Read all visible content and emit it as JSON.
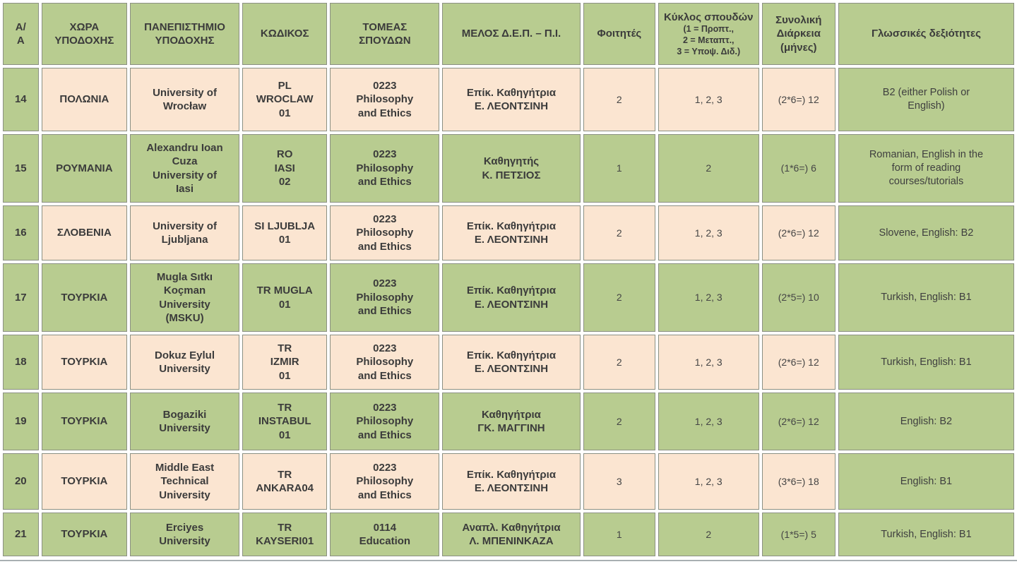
{
  "colors": {
    "green": "#b8cc90",
    "peach": "#fbe5d1",
    "border": "#8b9083"
  },
  "table": {
    "columns": [
      {
        "key": "aa",
        "label": "Α/\nΑ"
      },
      {
        "key": "country",
        "label": "ΧΩΡΑ\nΥΠΟΔΟΧΗΣ"
      },
      {
        "key": "university",
        "label": "ΠΑΝΕΠΙΣΤΗΜΙΟ\nΥΠΟΔΟΧΗΣ"
      },
      {
        "key": "code",
        "label": "ΚΩΔΙΚΟΣ"
      },
      {
        "key": "sector",
        "label": "ΤΟΜΕΑΣ\nΣΠΟΥΔΩΝ"
      },
      {
        "key": "member",
        "label": "ΜΕΛΟΣ Δ.Ε.Π. – Π.Ι."
      },
      {
        "key": "students",
        "label": "Φοιτητές"
      },
      {
        "key": "cycle",
        "label": "Κύκλος σπουδών",
        "sublabel": "(1 = Προπτ.,\n2 = Μεταπτ.,\n3 = Υποψ. Διδ.)"
      },
      {
        "key": "duration",
        "label": "Συνολική\nΔιάρκεια\n(μήνες)"
      },
      {
        "key": "languages",
        "label": "Γλωσσικές δεξιότητες"
      }
    ],
    "rows": [
      {
        "theme": "peach",
        "cells": {
          "aa": "14",
          "country": "ΠΟΛΩΝΙΑ",
          "university": "University of\nWrocław",
          "code": "PL\nWROCLAW\n01",
          "sector": "0223\nPhilosophy\nand Ethics",
          "member": "Επίκ. Καθηγήτρια\nΕ. ΛΕΟΝΤΣΙΝΗ",
          "students": "2",
          "cycle": "1, 2, 3",
          "duration": "(2*6=) 12",
          "languages": "B2 (either Polish or\nEnglish)"
        }
      },
      {
        "theme": "green",
        "cells": {
          "aa": "15",
          "country": "ΡΟΥΜΑΝΙΑ",
          "university": "Alexandru Ioan\nCuza\nUniversity of\nIasi",
          "code": "RO\nIASI\n02",
          "sector": "0223\nPhilosophy\nand Ethics",
          "member": "Καθηγητής\nΚ. ΠΕΤΣΙΟΣ",
          "students": "1",
          "cycle": "2",
          "duration": "(1*6=) 6",
          "languages": "Romanian, English in the\nform of reading\ncourses/tutorials"
        }
      },
      {
        "theme": "peach",
        "cells": {
          "aa": "16",
          "country": "ΣΛΟΒΕΝΙΑ",
          "university": "University of\nLjubljana",
          "code": "SI LJUBLJA\n01",
          "sector": "0223\nPhilosophy\nand Ethics",
          "member": "Επίκ. Καθηγήτρια\nΕ. ΛΕΟΝΤΣΙΝΗ",
          "students": "2",
          "cycle": "1, 2, 3",
          "duration": "(2*6=) 12",
          "languages": "Slovene, English: B2"
        }
      },
      {
        "theme": "green",
        "cells": {
          "aa": "17",
          "country": "ΤΟΥΡΚΙΑ",
          "university": "Mugla Sıtkı\nKoçman\nUniversity\n(MSKU)",
          "code": "TR MUGLA\n01",
          "sector": "0223\nPhilosophy\nand Ethics",
          "member": "Επίκ. Καθηγήτρια\nΕ. ΛΕΟΝΤΣΙΝΗ",
          "students": "2",
          "cycle": "1, 2, 3",
          "duration": "(2*5=) 10",
          "languages": "Turkish, English: B1"
        }
      },
      {
        "theme": "peach",
        "cells": {
          "aa": "18",
          "country": "ΤΟΥΡΚΙΑ",
          "university": "Dokuz Eylul\nUniversity",
          "code": "TR\nIZMIR\n01",
          "sector": "0223\nPhilosophy\nand Ethics",
          "member": "Επίκ. Καθηγήτρια\nΕ. ΛΕΟΝΤΣΙΝΗ",
          "students": "2",
          "cycle": "1, 2, 3",
          "duration": "(2*6=) 12",
          "languages": "Turkish, English: B1"
        }
      },
      {
        "theme": "green",
        "cells": {
          "aa": "19",
          "country": "ΤΟΥΡΚΙΑ",
          "university": "Bogaziki\nUniversity",
          "code": "TR\nINSTABUL\n01",
          "sector": "0223\nPhilosophy\nand Ethics",
          "member": "Καθηγήτρια\nΓΚ. ΜΑΓΓΙΝΗ",
          "students": "2",
          "cycle": "1, 2, 3",
          "duration": "(2*6=) 12",
          "languages": "English: B2"
        }
      },
      {
        "theme": "peach",
        "cells": {
          "aa": "20",
          "country": "ΤΟΥΡΚΙΑ",
          "university": "Middle East\nTechnical\nUniversity",
          "code": "TR\nANKARA04",
          "sector": "0223\nPhilosophy\nand Ethics",
          "member": "Επίκ. Καθηγήτρια\nΕ. ΛΕΟΝΤΣΙΝΗ",
          "students": "3",
          "cycle": "1, 2, 3",
          "duration": "(3*6=) 18",
          "languages": "English: B1"
        }
      },
      {
        "theme": "green",
        "cells": {
          "aa": "21",
          "country": "ΤΟΥΡΚΙΑ",
          "university": "Erciyes\nUniversity",
          "code": "TR\nKAYSERI01",
          "sector": "0114\nEducation",
          "member": "Αναπλ. Καθηγήτρια\nΛ. ΜΠΕΝΙΝΚΑΖΑ",
          "students": "1",
          "cycle": "2",
          "duration": "(1*5=) 5",
          "languages": "Turkish, English: B1"
        }
      }
    ]
  }
}
